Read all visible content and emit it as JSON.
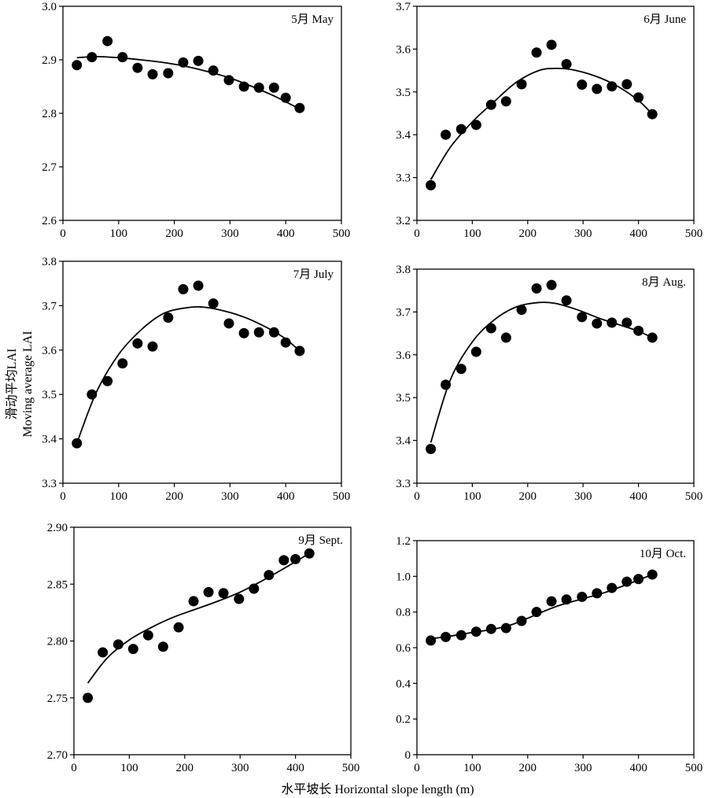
{
  "figure": {
    "ylabel_cn": "滑动平均LAI",
    "ylabel_en": "Moving average LAI",
    "xlabel": "水平坡长 Horizontal slope length (m)"
  },
  "chart_data": [
    {
      "type": "scatter",
      "label": "5月 May",
      "xlim": [
        0,
        500
      ],
      "ylim": [
        2.6,
        3.0
      ],
      "xticks": [
        0,
        100,
        200,
        300,
        400,
        500
      ],
      "yticks": [
        2.6,
        2.7,
        2.8,
        2.9,
        3.0
      ],
      "ytick_labels": [
        "2.6",
        "2.7",
        "2.8",
        "2.9",
        "3.0"
      ],
      "x": [
        25,
        52,
        80,
        107,
        134,
        161,
        189,
        216,
        243,
        270,
        298,
        325,
        352,
        379,
        400,
        425
      ],
      "y": [
        2.89,
        2.905,
        2.935,
        2.905,
        2.885,
        2.873,
        2.875,
        2.895,
        2.898,
        2.88,
        2.862,
        2.85,
        2.848,
        2.848,
        2.829,
        2.81
      ],
      "trend": {
        "x": [
          25,
          60,
          100,
          140,
          180,
          220,
          260,
          300,
          340,
          380,
          425
        ],
        "y": [
          2.904,
          2.906,
          2.904,
          2.9,
          2.895,
          2.888,
          2.878,
          2.866,
          2.85,
          2.832,
          2.808
        ]
      }
    },
    {
      "type": "scatter",
      "label": "6月 June",
      "xlim": [
        0,
        500
      ],
      "ylim": [
        3.2,
        3.7
      ],
      "xticks": [
        0,
        100,
        200,
        300,
        400,
        500
      ],
      "yticks": [
        3.2,
        3.3,
        3.4,
        3.5,
        3.6,
        3.7
      ],
      "ytick_labels": [
        "3.2",
        "3.3",
        "3.4",
        "3.5",
        "3.6",
        "3.7"
      ],
      "x": [
        25,
        52,
        80,
        107,
        134,
        161,
        189,
        216,
        243,
        270,
        298,
        325,
        352,
        379,
        400,
        425
      ],
      "y": [
        3.282,
        3.4,
        3.413,
        3.423,
        3.47,
        3.478,
        3.518,
        3.592,
        3.61,
        3.565,
        3.517,
        3.507,
        3.513,
        3.518,
        3.487,
        3.448
      ],
      "trend": {
        "x": [
          25,
          60,
          100,
          140,
          180,
          220,
          250,
          280,
          320,
          360,
          400,
          425
        ],
        "y": [
          3.295,
          3.37,
          3.43,
          3.478,
          3.523,
          3.55,
          3.555,
          3.552,
          3.538,
          3.515,
          3.48,
          3.448
        ]
      }
    },
    {
      "type": "scatter",
      "label": "7月 July",
      "xlim": [
        0,
        500
      ],
      "ylim": [
        3.3,
        3.8
      ],
      "xticks": [
        0,
        100,
        200,
        300,
        400,
        500
      ],
      "yticks": [
        3.3,
        3.4,
        3.5,
        3.6,
        3.7,
        3.8
      ],
      "ytick_labels": [
        "3.3",
        "3.4",
        "3.5",
        "3.6",
        "3.7",
        "3.8"
      ],
      "x": [
        25,
        52,
        80,
        107,
        134,
        161,
        189,
        216,
        243,
        270,
        298,
        325,
        352,
        379,
        400,
        425
      ],
      "y": [
        3.39,
        3.5,
        3.53,
        3.57,
        3.615,
        3.608,
        3.673,
        3.737,
        3.745,
        3.705,
        3.66,
        3.638,
        3.64,
        3.64,
        3.617,
        3.598
      ],
      "trend": {
        "x": [
          25,
          60,
          100,
          140,
          180,
          220,
          250,
          290,
          330,
          370,
          400,
          425
        ],
        "y": [
          3.39,
          3.505,
          3.59,
          3.645,
          3.682,
          3.695,
          3.697,
          3.688,
          3.672,
          3.648,
          3.625,
          3.598
        ]
      }
    },
    {
      "type": "scatter",
      "label": "8月 Aug.",
      "xlim": [
        0,
        500
      ],
      "ylim": [
        3.3,
        3.8
      ],
      "xticks": [
        0,
        100,
        200,
        300,
        400,
        500
      ],
      "yticks": [
        3.3,
        3.4,
        3.5,
        3.6,
        3.7,
        3.8
      ],
      "ytick_labels": [
        "3.3",
        "3.4",
        "3.5",
        "3.6",
        "3.7",
        "3.8"
      ],
      "x": [
        25,
        52,
        80,
        107,
        134,
        161,
        189,
        216,
        243,
        270,
        298,
        325,
        352,
        379,
        400,
        425
      ],
      "y": [
        3.38,
        3.53,
        3.567,
        3.607,
        3.662,
        3.64,
        3.705,
        3.755,
        3.763,
        3.727,
        3.688,
        3.673,
        3.675,
        3.675,
        3.656,
        3.64
      ],
      "trend": {
        "x": [
          25,
          60,
          100,
          140,
          180,
          220,
          250,
          290,
          330,
          370,
          400,
          425
        ],
        "y": [
          3.395,
          3.54,
          3.63,
          3.682,
          3.712,
          3.722,
          3.72,
          3.705,
          3.685,
          3.668,
          3.655,
          3.64
        ]
      }
    },
    {
      "type": "scatter",
      "label": "9月 Sept.",
      "xlim": [
        0,
        500
      ],
      "ylim": [
        2.7,
        2.9
      ],
      "xticks": [
        0,
        100,
        200,
        300,
        400,
        500
      ],
      "yticks": [
        2.7,
        2.75,
        2.8,
        2.85,
        2.9
      ],
      "ytick_labels": [
        "2.70",
        "2.75",
        "2.80",
        "2.85",
        "2.90"
      ],
      "x": [
        25,
        52,
        80,
        107,
        134,
        161,
        189,
        216,
        243,
        270,
        298,
        325,
        352,
        379,
        400,
        425
      ],
      "y": [
        2.75,
        2.79,
        2.797,
        2.793,
        2.805,
        2.795,
        2.812,
        2.835,
        2.843,
        2.842,
        2.837,
        2.846,
        2.858,
        2.871,
        2.872,
        2.877
      ],
      "trend": {
        "x": [
          25,
          60,
          100,
          140,
          180,
          220,
          260,
          300,
          340,
          380,
          425
        ],
        "y": [
          2.763,
          2.785,
          2.801,
          2.812,
          2.821,
          2.828,
          2.835,
          2.843,
          2.853,
          2.864,
          2.877
        ]
      }
    },
    {
      "type": "scatter",
      "label": "10月 Oct.",
      "xlim": [
        0,
        500
      ],
      "ylim": [
        0,
        1.2
      ],
      "xticks": [
        0,
        100,
        200,
        300,
        400,
        500
      ],
      "yticks": [
        0,
        0.2,
        0.4,
        0.6,
        0.8,
        1.0,
        1.2
      ],
      "ytick_labels": [
        "0",
        "0.2",
        "0.4",
        "0.6",
        "0.8",
        "1.0",
        "1.2"
      ],
      "x": [
        25,
        52,
        80,
        107,
        134,
        161,
        189,
        216,
        243,
        270,
        298,
        325,
        352,
        379,
        400,
        425
      ],
      "y": [
        0.64,
        0.66,
        0.67,
        0.69,
        0.705,
        0.71,
        0.75,
        0.8,
        0.86,
        0.87,
        0.885,
        0.905,
        0.935,
        0.97,
        0.985,
        1.01
      ],
      "trend": {
        "x": [
          25,
          60,
          100,
          140,
          170,
          200,
          230,
          260,
          300,
          340,
          380,
          425
        ],
        "y": [
          0.65,
          0.665,
          0.685,
          0.705,
          0.728,
          0.765,
          0.805,
          0.84,
          0.875,
          0.91,
          0.955,
          1.01
        ]
      }
    }
  ]
}
